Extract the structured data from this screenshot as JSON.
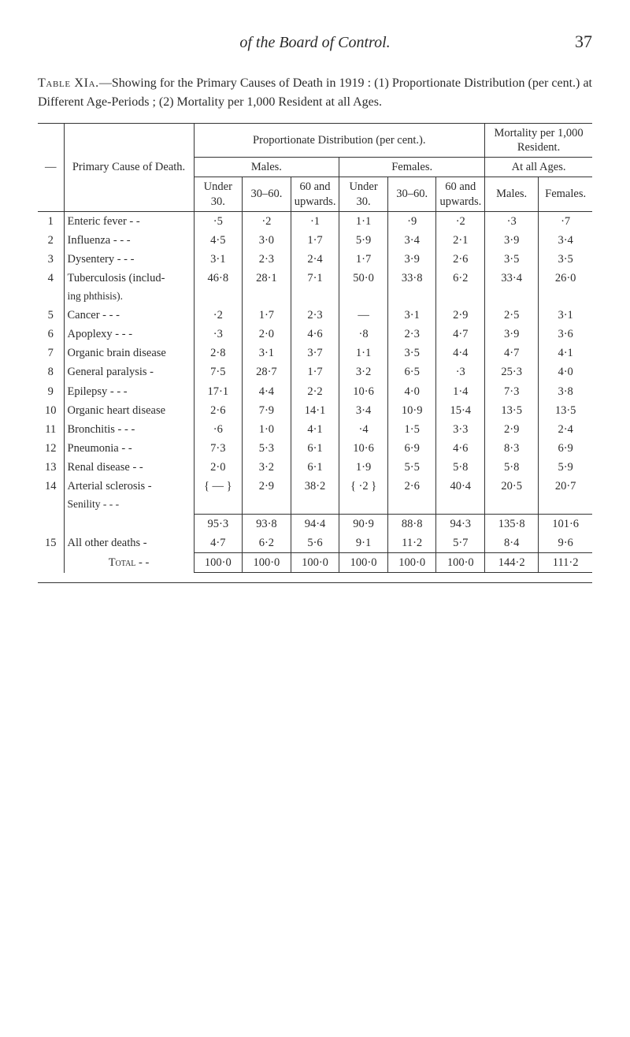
{
  "page": {
    "running_title": "of the Board of Control.",
    "page_number": "37"
  },
  "caption": {
    "lead": "Table XIa.",
    "text": "—Showing for the Primary Causes of Death in 1919 : (1) Proportionate Distribution (per cent.) at Different Age-Periods ; (2) Mortality per 1,000 Resident at all Ages."
  },
  "headers": {
    "dash": "—",
    "primary_cause": "Primary Cause of Death.",
    "prop_dist": "Proportionate Distribution (per cent.).",
    "mort_per_1000": "Mortality per 1,000 Resident.",
    "males": "Males.",
    "females": "Females.",
    "at_all_ages": "At all Ages.",
    "under_30": "Under 30.",
    "c30_60": "30–60.",
    "c60_up": "60 and upwards.",
    "mf_males": "Males.",
    "mf_females": "Females."
  },
  "rows": [
    {
      "n": "1",
      "cause": "Enteric fever  -    -",
      "m_u30": "·5",
      "m_3060": "·2",
      "m_60": "·1",
      "f_u30": "1·1",
      "f_3060": "·9",
      "f_60": "·2",
      "mm": "·3",
      "mf": "·7"
    },
    {
      "n": "2",
      "cause": "Influenza  -    -    -",
      "m_u30": "4·5",
      "m_3060": "3·0",
      "m_60": "1·7",
      "f_u30": "5·9",
      "f_3060": "3·4",
      "f_60": "2·1",
      "mm": "3·9",
      "mf": "3·4"
    },
    {
      "n": "3",
      "cause": "Dysentery  -    -    -",
      "m_u30": "3·1",
      "m_3060": "2·3",
      "m_60": "2·4",
      "f_u30": "1·7",
      "f_3060": "3·9",
      "f_60": "2·6",
      "mm": "3·5",
      "mf": "3·5"
    },
    {
      "n": "4",
      "cause": "Tuberculosis (includ-",
      "sub": "ing phthisis).",
      "m_u30": "46·8",
      "m_3060": "28·1",
      "m_60": "7·1",
      "f_u30": "50·0",
      "f_3060": "33·8",
      "f_60": "6·2",
      "mm": "33·4",
      "mf": "26·0"
    },
    {
      "n": "5",
      "cause": "Cancer    -    -    -",
      "m_u30": "·2",
      "m_3060": "1·7",
      "m_60": "2·3",
      "f_u30": "—",
      "f_3060": "3·1",
      "f_60": "2·9",
      "mm": "2·5",
      "mf": "3·1"
    },
    {
      "n": "6",
      "cause": "Apoplexy  -    -    -",
      "m_u30": "·3",
      "m_3060": "2·0",
      "m_60": "4·6",
      "f_u30": "·8",
      "f_3060": "2·3",
      "f_60": "4·7",
      "mm": "3·9",
      "mf": "3·6"
    },
    {
      "n": "7",
      "cause": "Organic brain disease",
      "m_u30": "2·8",
      "m_3060": "3·1",
      "m_60": "3·7",
      "f_u30": "1·1",
      "f_3060": "3·5",
      "f_60": "4·4",
      "mm": "4·7",
      "mf": "4·1"
    },
    {
      "n": "8",
      "cause": "General paralysis   -",
      "m_u30": "7·5",
      "m_3060": "28·7",
      "m_60": "1·7",
      "f_u30": "3·2",
      "f_3060": "6·5",
      "f_60": "·3",
      "mm": "25·3",
      "mf": "4·0"
    },
    {
      "n": "9",
      "cause": "Epilepsy  -    -    -",
      "m_u30": "17·1",
      "m_3060": "4·4",
      "m_60": "2·2",
      "f_u30": "10·6",
      "f_3060": "4·0",
      "f_60": "1·4",
      "mm": "7·3",
      "mf": "3·8"
    },
    {
      "n": "10",
      "cause": "Organic heart disease",
      "m_u30": "2·6",
      "m_3060": "7·9",
      "m_60": "14·1",
      "f_u30": "3·4",
      "f_3060": "10·9",
      "f_60": "15·4",
      "mm": "13·5",
      "mf": "13·5"
    },
    {
      "n": "11",
      "cause": "Bronchitis -    -    -",
      "m_u30": "·6",
      "m_3060": "1·0",
      "m_60": "4·1",
      "f_u30": "·4",
      "f_3060": "1·5",
      "f_60": "3·3",
      "mm": "2·9",
      "mf": "2·4"
    },
    {
      "n": "12",
      "cause": "Pneumonia    -    -",
      "m_u30": "7·3",
      "m_3060": "5·3",
      "m_60": "6·1",
      "f_u30": "10·6",
      "f_3060": "6·9",
      "f_60": "4·6",
      "mm": "8·3",
      "mf": "6·9"
    },
    {
      "n": "13",
      "cause": "Renal disease  -    -",
      "m_u30": "2·0",
      "m_3060": "3·2",
      "m_60": "6·1",
      "f_u30": "1·9",
      "f_3060": "5·5",
      "f_60": "5·8",
      "mm": "5·8",
      "mf": "5·9"
    },
    {
      "n": "14",
      "cause": "Arterial sclerosis   -",
      "sub": "Senility   -    -    -",
      "brace": true,
      "m_u30": "{ — }",
      "m_3060": "2·9",
      "m_60": "38·2",
      "f_u30": "{ ·2 }",
      "f_3060": "2·6",
      "f_60": "40·4",
      "mm": "20·5",
      "mf": "20·7"
    }
  ],
  "subtotal": {
    "m_u30": "95·3",
    "m_3060": "93·8",
    "m_60": "94·4",
    "f_u30": "90·9",
    "f_3060": "88·8",
    "f_60": "94·3",
    "mm": "135·8",
    "mf": "101·6"
  },
  "row15": {
    "n": "15",
    "cause": "All other deaths    -",
    "m_u30": "4·7",
    "m_3060": "6·2",
    "m_60": "5·6",
    "f_u30": "9·1",
    "f_3060": "11·2",
    "f_60": "5·7",
    "mm": "8·4",
    "mf": "9·6"
  },
  "total": {
    "label": "Total   -    -",
    "m_u30": "100·0",
    "m_3060": "100·0",
    "m_60": "100·0",
    "f_u30": "100·0",
    "f_3060": "100·0",
    "f_60": "100·0",
    "mm": "144·2",
    "mf": "111·2"
  }
}
